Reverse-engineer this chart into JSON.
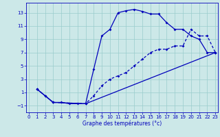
{
  "xlabel": "Graphe des températures (°c)",
  "bg_color": "#cce8e8",
  "grid_color": "#99cccc",
  "line_color": "#0000bb",
  "line1_x": [
    1,
    2,
    3,
    4,
    5,
    6,
    7,
    8,
    9,
    10,
    11,
    12,
    13,
    14,
    15,
    16,
    17,
    18,
    19,
    20,
    21,
    22,
    23
  ],
  "line1_y": [
    1.5,
    0.5,
    -0.5,
    -0.5,
    -0.7,
    -0.7,
    -0.7,
    4.5,
    9.5,
    10.5,
    13.0,
    13.3,
    13.5,
    13.2,
    12.8,
    12.8,
    11.5,
    10.5,
    10.5,
    9.5,
    9.0,
    7.0,
    7.0
  ],
  "line2_x": [
    1,
    2,
    3,
    7,
    8,
    9,
    10,
    11,
    12,
    13,
    14,
    15,
    16,
    17,
    18,
    19,
    20,
    21,
    22,
    23
  ],
  "line2_y": [
    1.5,
    0.5,
    -0.5,
    -0.7,
    0.5,
    2.0,
    3.0,
    3.5,
    4.0,
    5.0,
    6.0,
    7.0,
    7.5,
    7.5,
    8.0,
    8.0,
    10.5,
    9.5,
    9.5,
    7.0
  ],
  "line3_x": [
    1,
    3,
    7,
    23
  ],
  "line3_y": [
    1.5,
    -0.5,
    -0.7,
    7.0
  ],
  "ylim": [
    -2,
    14.5
  ],
  "xlim": [
    0,
    23
  ],
  "yticks": [
    -1,
    1,
    3,
    5,
    7,
    9,
    11,
    13
  ],
  "xticks": [
    0,
    1,
    2,
    3,
    4,
    5,
    6,
    7,
    8,
    9,
    10,
    11,
    12,
    13,
    14,
    15,
    16,
    17,
    18,
    19,
    20,
    21,
    22,
    23
  ]
}
